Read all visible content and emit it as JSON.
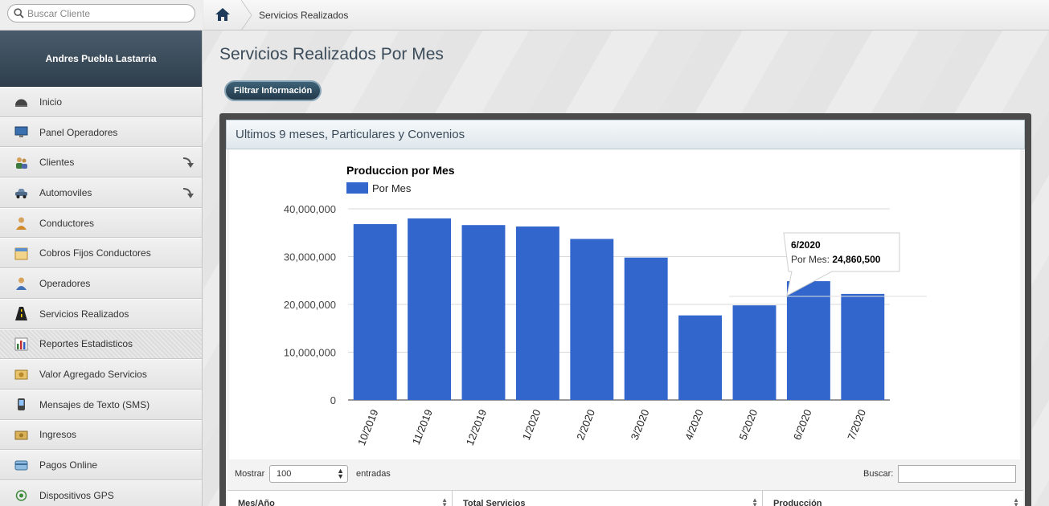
{
  "search": {
    "placeholder": "Buscar Cliente"
  },
  "user": {
    "name": "Andres Puebla Lastarria"
  },
  "sidebar": {
    "items": [
      {
        "label": "Inicio",
        "icon": "dashboard-icon",
        "arrow": false
      },
      {
        "label": "Panel Operadores",
        "icon": "monitor-icon",
        "arrow": false
      },
      {
        "label": "Clientes",
        "icon": "users-icon",
        "arrow": true
      },
      {
        "label": "Automoviles",
        "icon": "car-icon",
        "arrow": true
      },
      {
        "label": "Conductores",
        "icon": "driver-icon",
        "arrow": false
      },
      {
        "label": "Cobros Fijos Conductores",
        "icon": "calendar-icon",
        "arrow": false
      },
      {
        "label": "Operadores",
        "icon": "operator-icon",
        "arrow": false
      },
      {
        "label": "Servicios Realizados",
        "icon": "road-icon",
        "arrow": false
      },
      {
        "label": "Reportes Estadisticos",
        "icon": "bar-chart-icon",
        "arrow": false,
        "active": true
      },
      {
        "label": "Valor Agregado Servicios",
        "icon": "money-icon",
        "arrow": false
      },
      {
        "label": "Mensajes de Texto (SMS)",
        "icon": "phone-icon",
        "arrow": false
      },
      {
        "label": "Ingresos",
        "icon": "cash-icon",
        "arrow": false
      },
      {
        "label": "Pagos Online",
        "icon": "card-icon",
        "arrow": false
      },
      {
        "label": "Dispositivos GPS",
        "icon": "gps-icon",
        "arrow": false
      }
    ]
  },
  "breadcrumb": {
    "current": "Servicios Realizados"
  },
  "page": {
    "title": "Servicios Realizados Por Mes",
    "filter_button": "Filtrar Información",
    "panel_title": "Ultimos 9 meses, Particulares y Convenios"
  },
  "chart_data": {
    "type": "bar",
    "title": "Produccion por Mes",
    "legend": {
      "placement": "top-left",
      "label": "Por Mes"
    },
    "categories": [
      "10/2019",
      "11/2019",
      "12/2019",
      "1/2020",
      "2/2020",
      "3/2020",
      "4/2020",
      "5/2020",
      "6/2020",
      "7/2020"
    ],
    "series": [
      {
        "name": "Por Mes",
        "values": [
          36800000,
          38000000,
          36600000,
          36300000,
          33700000,
          29800000,
          17700000,
          19800000,
          24860500,
          22200000
        ]
      }
    ],
    "ylim": [
      0,
      40000000
    ],
    "yticks": [
      "40,000,000",
      "30,000,000",
      "20,000,000",
      "10,000,000",
      "0"
    ],
    "grid": true,
    "bar_color": "#3366cc",
    "tooltip": {
      "category": "6/2020",
      "label": "Por Mes:",
      "value": "24,860,500"
    }
  },
  "table": {
    "show_label": "Mostrar",
    "page_length": "100",
    "entries_label": "entradas",
    "search_label": "Buscar:",
    "columns": [
      "Mes/Año",
      "Total Servicios",
      "Producción"
    ]
  }
}
